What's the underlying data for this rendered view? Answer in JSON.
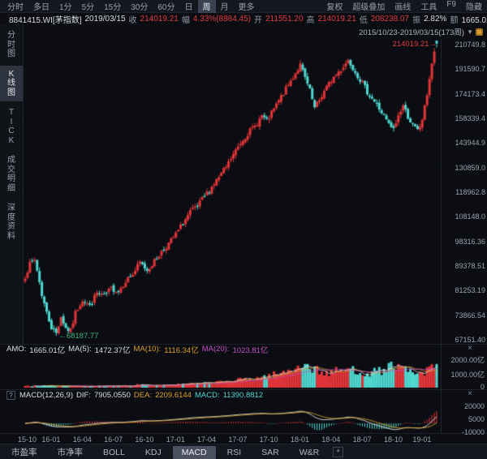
{
  "toolbar": {
    "items": [
      "分时",
      "多日",
      "1分",
      "5分",
      "15分",
      "30分",
      "60分",
      "日",
      "周",
      "月",
      "更多"
    ],
    "selected": "周",
    "right_items": [
      "复权",
      "超级叠加",
      "画线",
      "工具",
      "F9",
      "隐藏"
    ]
  },
  "quote": {
    "symbol": "8841415.WI[茅指数]",
    "date": "2019/03/15",
    "close_label": "收",
    "close": "214019.21",
    "chg_label": "幅",
    "chg": "4.33%(8884.45)",
    "open_label": "开",
    "open": "211551.20",
    "high_label": "高",
    "high": "214019.21",
    "low_label": "低",
    "low": "208238.07",
    "amp_label": "振",
    "amp": "2.82%",
    "amt_label": "额",
    "amt": "1665.01亿"
  },
  "range": {
    "label": "2015/10/23-2019/03/15(173周)",
    "caret": "▼"
  },
  "sidebar": {
    "items": [
      "分时图",
      "K线图",
      "TICK",
      "成交明细",
      "深度资料"
    ],
    "selected": "K线图"
  },
  "main_chart": {
    "annotation_high": "214019.21→",
    "annotation_low": "←68187.77",
    "y_ticks": [
      "210749.8",
      "191590.7",
      "174173.4",
      "158339.4",
      "143944.9",
      "130859.0",
      "118962.8",
      "108148.0",
      "98316.36",
      "89378.51",
      "81253.19",
      "73866.54",
      "67151.40"
    ]
  },
  "amo": {
    "label": "AMO:",
    "value": "1665.01亿",
    "ma5_label": "MA(5):",
    "ma5": "1472.37亿",
    "ma10_label": "MA(10):",
    "ma10": "1116.34亿",
    "ma20_label": "MA(20):",
    "ma20": "1023.81亿",
    "y_ticks": [
      "2000.00亿",
      "1000.00亿",
      "0"
    ],
    "close_icon": "×"
  },
  "macd": {
    "help": "?",
    "label": "MACD(12,26,9)",
    "dif_label": "DIF:",
    "dif": "7905.0550",
    "dea_label": "DEA:",
    "dea": "2209.6144",
    "macd_label": "MACD:",
    "macd": "11390.8812",
    "y_ticks": [
      "20000",
      "5000",
      "-10000"
    ],
    "close_icon": "×"
  },
  "x_ticks": [
    "15-10",
    "16-01",
    "16-04",
    "16-07",
    "16-10",
    "17-01",
    "17-04",
    "17-07",
    "17-10",
    "18-01",
    "18-04",
    "18-07",
    "18-10",
    "19-01"
  ],
  "bottom_tabs": {
    "items": [
      "市盈率",
      "市净率",
      "BOLL",
      "KDJ",
      "MACD",
      "RSI",
      "SAR",
      "W&R"
    ],
    "selected": "MACD",
    "add_button": "+"
  },
  "colors": {
    "up": "#e23539",
    "down": "#4fd8d0",
    "last_candle": "#4fd8d0",
    "ma5_line": "#e8e8e8",
    "ma10_line": "#d8a02c",
    "ma20_line": "#c44fc4",
    "dif_line": "#e8e8e8",
    "dea_line": "#d8a02c",
    "grid": "rgba(180,195,220,0.07)",
    "red_text": "#e03c42"
  },
  "chart_data": {
    "type": "candlestick+volume+macd",
    "x_unit": "week",
    "weeks": 173,
    "period": "2015/10/23-2019/03/15",
    "price_log_scale": true,
    "price_axis": [
      210749.8,
      191590.7,
      174173.4,
      158339.4,
      143944.9,
      130859.0,
      118962.8,
      108148.0,
      98316.36,
      89378.51,
      81253.19,
      73866.54,
      67151.4
    ],
    "x_tick_weeks": [
      1,
      11,
      24,
      37,
      50,
      63,
      76,
      89,
      102,
      115,
      128,
      141,
      154,
      166
    ],
    "x_tick_labels": [
      "15-10",
      "16-01",
      "16-04",
      "16-07",
      "16-10",
      "17-01",
      "17-04",
      "17-07",
      "17-10",
      "18-01",
      "18-04",
      "18-07",
      "18-10",
      "19-01"
    ],
    "close_anchors": [
      [
        0,
        86000
      ],
      [
        2,
        90000
      ],
      [
        4,
        91500
      ],
      [
        5,
        88000
      ],
      [
        7,
        80000
      ],
      [
        9,
        74500
      ],
      [
        11,
        70500
      ],
      [
        13,
        68900
      ],
      [
        15,
        73500
      ],
      [
        17,
        70200
      ],
      [
        19,
        69400
      ],
      [
        21,
        74500
      ],
      [
        24,
        78500
      ],
      [
        27,
        76500
      ],
      [
        30,
        80500
      ],
      [
        33,
        79500
      ],
      [
        36,
        82000
      ],
      [
        39,
        81000
      ],
      [
        42,
        84500
      ],
      [
        45,
        86500
      ],
      [
        48,
        90500
      ],
      [
        51,
        88000
      ],
      [
        54,
        91000
      ],
      [
        57,
        94500
      ],
      [
        60,
        97500
      ],
      [
        63,
        101000
      ],
      [
        66,
        105500
      ],
      [
        69,
        110000
      ],
      [
        72,
        112500
      ],
      [
        75,
        117000
      ],
      [
        78,
        121500
      ],
      [
        81,
        126000
      ],
      [
        84,
        131000
      ],
      [
        87,
        137500
      ],
      [
        90,
        144000
      ],
      [
        93,
        149500
      ],
      [
        96,
        153500
      ],
      [
        99,
        160000
      ],
      [
        101,
        156500
      ],
      [
        104,
        164000
      ],
      [
        107,
        172000
      ],
      [
        110,
        180000
      ],
      [
        113,
        189000
      ],
      [
        115,
        194500
      ],
      [
        117,
        185000
      ],
      [
        119,
        176000
      ],
      [
        121,
        164500
      ],
      [
        123,
        170000
      ],
      [
        126,
        178500
      ],
      [
        129,
        186000
      ],
      [
        132,
        191500
      ],
      [
        135,
        198500
      ],
      [
        137,
        193000
      ],
      [
        140,
        184000
      ],
      [
        143,
        175500
      ],
      [
        146,
        169000
      ],
      [
        149,
        162000
      ],
      [
        152,
        154500
      ],
      [
        154,
        151500
      ],
      [
        156,
        160000
      ],
      [
        158,
        166500
      ],
      [
        160,
        159500
      ],
      [
        162,
        154000
      ],
      [
        164,
        151000
      ],
      [
        165,
        153500
      ],
      [
        166,
        158000
      ],
      [
        167,
        165000
      ],
      [
        168,
        174000
      ],
      [
        169,
        185000
      ],
      [
        170,
        196000
      ],
      [
        171,
        205134.76
      ],
      [
        172,
        214019.21
      ]
    ],
    "volume_anchors_yi": [
      [
        0,
        150
      ],
      [
        5,
        120
      ],
      [
        10,
        130
      ],
      [
        15,
        110
      ],
      [
        20,
        95
      ],
      [
        25,
        100
      ],
      [
        30,
        110
      ],
      [
        35,
        100
      ],
      [
        40,
        120
      ],
      [
        45,
        130
      ],
      [
        48,
        260
      ],
      [
        52,
        150
      ],
      [
        56,
        170
      ],
      [
        60,
        200
      ],
      [
        64,
        230
      ],
      [
        68,
        260
      ],
      [
        72,
        280
      ],
      [
        76,
        320
      ],
      [
        80,
        380
      ],
      [
        84,
        430
      ],
      [
        88,
        520
      ],
      [
        92,
        600
      ],
      [
        96,
        650
      ],
      [
        100,
        780
      ],
      [
        103,
        900
      ],
      [
        106,
        950
      ],
      [
        109,
        1100
      ],
      [
        112,
        1300
      ],
      [
        115,
        1750
      ],
      [
        118,
        1500
      ],
      [
        121,
        1300
      ],
      [
        124,
        1100
      ],
      [
        127,
        1000
      ],
      [
        130,
        1150
      ],
      [
        133,
        1250
      ],
      [
        136,
        1300
      ],
      [
        139,
        1150
      ],
      [
        142,
        1050
      ],
      [
        145,
        1100
      ],
      [
        148,
        1150
      ],
      [
        151,
        1250
      ],
      [
        154,
        1800
      ],
      [
        156,
        1300
      ],
      [
        158,
        1350
      ],
      [
        160,
        1150
      ],
      [
        162,
        1000
      ],
      [
        164,
        950
      ],
      [
        166,
        1000
      ],
      [
        168,
        1150
      ],
      [
        170,
        1350
      ],
      [
        171,
        1500
      ],
      [
        172,
        1665.01
      ]
    ],
    "low_marked": 68187.77,
    "prev_close": 205134.76,
    "last": {
      "open": 211551.2,
      "high": 214019.21,
      "low": 208238.07,
      "close": 214019.21,
      "amount_yi": 1665.01
    },
    "volume_axis_yi": [
      2000,
      1000,
      0
    ],
    "macd_axis": [
      20000,
      5000,
      -10000
    ],
    "macd_last": {
      "dif": 7905.055,
      "dea": 2209.6144,
      "macd": 11390.8812
    }
  }
}
